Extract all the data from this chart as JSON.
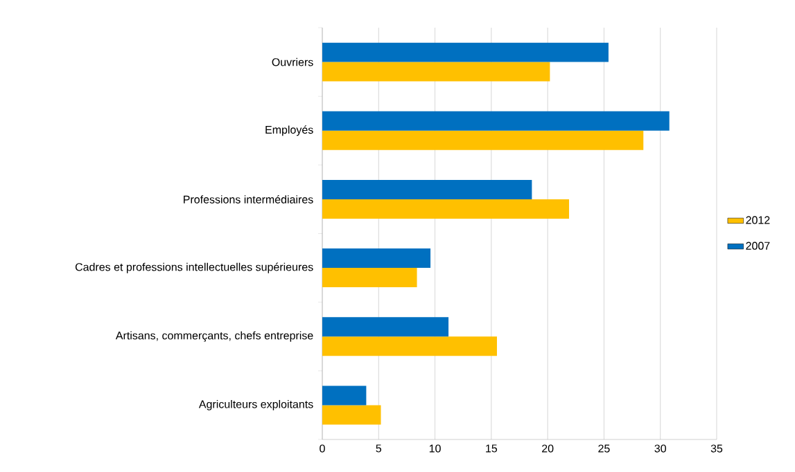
{
  "chart_data": {
    "type": "bar",
    "orientation": "horizontal",
    "categories": [
      "Ouvriers",
      "Employés",
      "Professions intermédiaires",
      "Cadres et professions intellectuelles supérieures",
      "Artisans, commerçants, chefs entreprise",
      "Agriculteurs exploitants"
    ],
    "series": [
      {
        "name": "2012",
        "color": "#ffc000",
        "values": [
          20.2,
          28.5,
          21.9,
          8.4,
          15.5,
          5.2
        ]
      },
      {
        "name": "2007",
        "color": "#0070c0",
        "values": [
          25.4,
          30.8,
          18.6,
          9.6,
          11.2,
          3.9
        ]
      }
    ],
    "xlim": [
      0,
      35
    ],
    "xticks": [
      0,
      5,
      10,
      15,
      20,
      25,
      30,
      35
    ],
    "grid": "x",
    "legend": "right"
  }
}
